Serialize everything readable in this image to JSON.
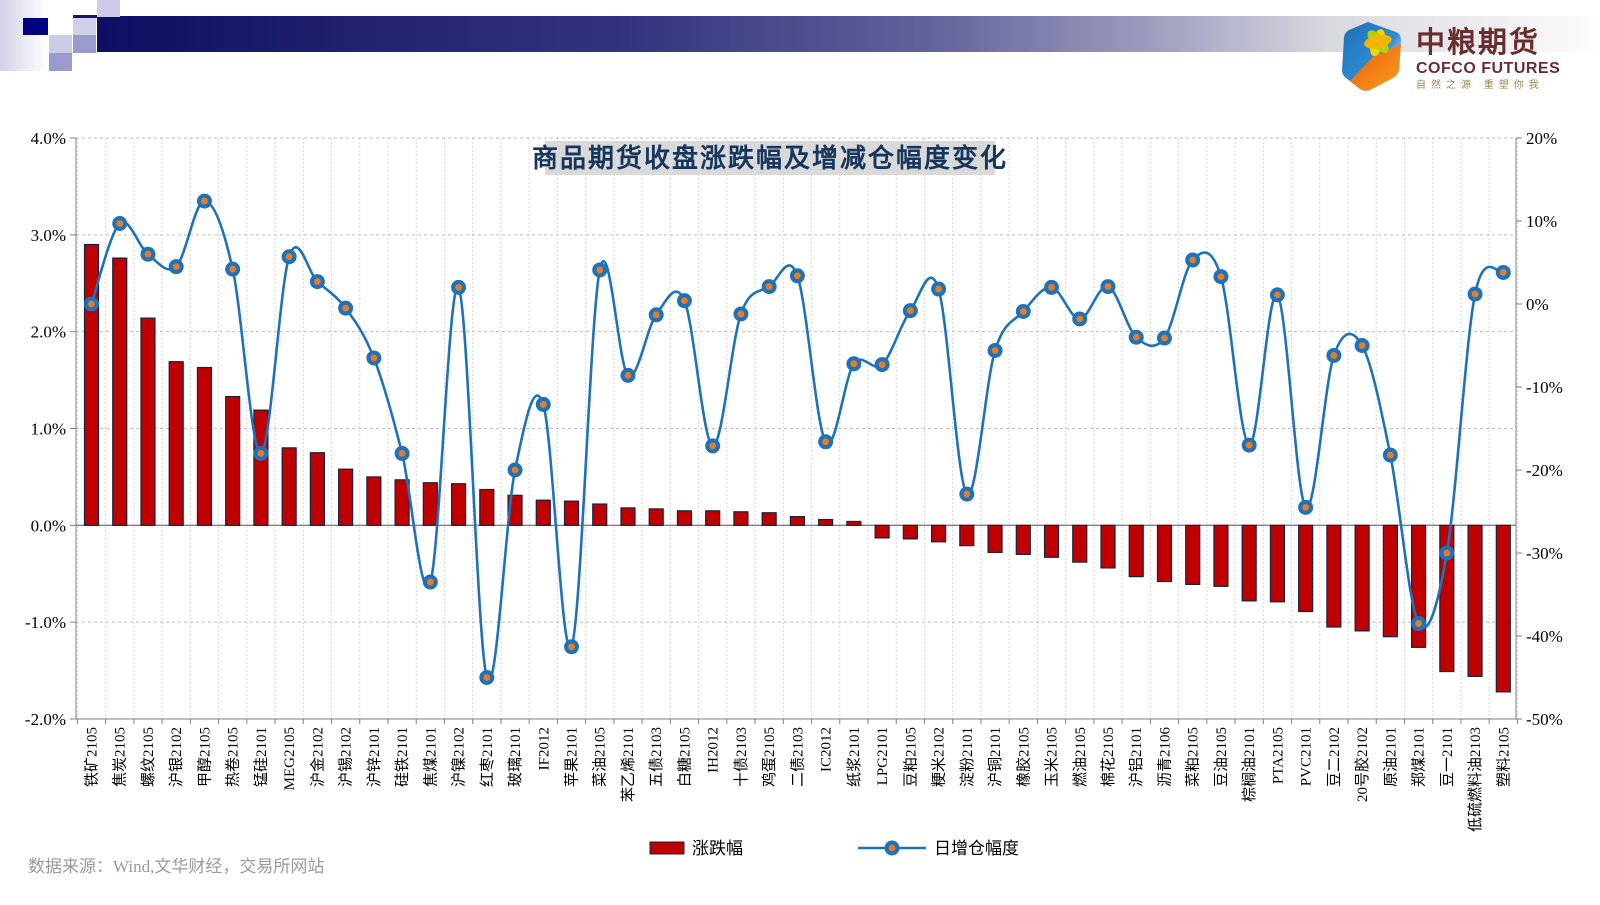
{
  "header": {
    "logo_title": "中粮期货",
    "logo_subtitle": "COFCO FUTURES",
    "logo_tagline": "自然之源 重塑你我"
  },
  "chart_data": {
    "type": "bar+line",
    "title": "商品期货收盘涨跌幅及增减仓幅度变化",
    "grid": true,
    "legend_position": "bottom",
    "left_axis": {
      "ticks": [
        "4.0%",
        "3.0%",
        "2.0%",
        "1.0%",
        "0.0%",
        "-1.0%",
        "-2.0%"
      ],
      "max": 4,
      "min": -2,
      "unit": "%"
    },
    "right_axis": {
      "ticks": [
        "20%",
        "10%",
        "0%",
        "-10%",
        "-20%",
        "-30%",
        "-40%",
        "-50%"
      ],
      "max": 20,
      "min": -50,
      "unit": "%"
    },
    "categories": [
      "铁矿2105",
      "焦炭2105",
      "螺纹2105",
      "沪银2102",
      "甲醇2105",
      "热卷2105",
      "锰硅2101",
      "MEG2105",
      "沪金2102",
      "沪锡2102",
      "沪锌2101",
      "硅铁2101",
      "焦煤2101",
      "沪镍2102",
      "红枣2101",
      "玻璃2101",
      "IF2012",
      "苹果2101",
      "菜油2105",
      "苯乙烯2101",
      "五债2103",
      "白糖2105",
      "IH2012",
      "十债2103",
      "鸡蛋2105",
      "二债2103",
      "IC2012",
      "纸浆2101",
      "LPG2101",
      "豆粕2105",
      "粳米2102",
      "淀粉2101",
      "沪铜2101",
      "橡胶2105",
      "玉米2105",
      "燃油2105",
      "棉花2105",
      "沪铝2101",
      "沥青2106",
      "菜粕2105",
      "豆油2105",
      "棕榈油2101",
      "PTA2105",
      "PVC2101",
      "豆二2102",
      "20号胶2102",
      "原油2101",
      "郑煤2101",
      "豆一2101",
      "低硫燃料油2103",
      "塑料2105"
    ],
    "series": [
      {
        "name": "涨跌幅",
        "type": "bar",
        "axis": "left",
        "color": "#c00000",
        "border_color": "#16233d",
        "values": [
          2.9,
          2.76,
          2.14,
          1.69,
          1.63,
          1.33,
          1.19,
          0.8,
          0.75,
          0.58,
          0.5,
          0.47,
          0.44,
          0.43,
          0.37,
          0.31,
          0.26,
          0.25,
          0.22,
          0.18,
          0.17,
          0.15,
          0.15,
          0.14,
          0.13,
          0.09,
          0.06,
          0.04,
          -0.13,
          -0.14,
          -0.17,
          -0.21,
          -0.28,
          -0.3,
          -0.33,
          -0.38,
          -0.44,
          -0.53,
          -0.58,
          -0.61,
          -0.63,
          -0.78,
          -0.79,
          -0.89,
          -1.05,
          -1.09,
          -1.15,
          -1.26,
          -1.51,
          -1.56,
          -1.72
        ]
      },
      {
        "name": "日增仓幅度",
        "type": "line",
        "axis": "right",
        "color": "#1f72b8",
        "marker_color": "#e87c26",
        "values": [
          0,
          9.7,
          6,
          4.5,
          12.4,
          4.2,
          -18,
          5.7,
          2.7,
          -0.5,
          -6.5,
          -18,
          -33.5,
          2,
          -45,
          -20,
          -12.1,
          -41.3,
          4.1,
          -8.6,
          -1.3,
          0.4,
          -17.1,
          -1.2,
          2.1,
          3.4,
          -16.6,
          -7.2,
          -7.3,
          -0.8,
          1.8,
          -22.9,
          -5.6,
          -0.9,
          2,
          -1.8,
          2.1,
          -4,
          -4.1,
          5.3,
          3.3,
          -17,
          1.1,
          -24.5,
          -6.2,
          -5,
          -18.2,
          -38.5,
          -30,
          1.2,
          3.8
        ]
      }
    ]
  },
  "footer": {
    "source": "数据来源：Wind,文华财经，交易所网站"
  },
  "colors": {
    "title_text": "#17365d",
    "title_band": "#d9d9d9",
    "grid": "#bdbdbd",
    "axis": "#7f7f7f",
    "zero_line": "#808080",
    "footer_text": "#9a9a9a"
  }
}
